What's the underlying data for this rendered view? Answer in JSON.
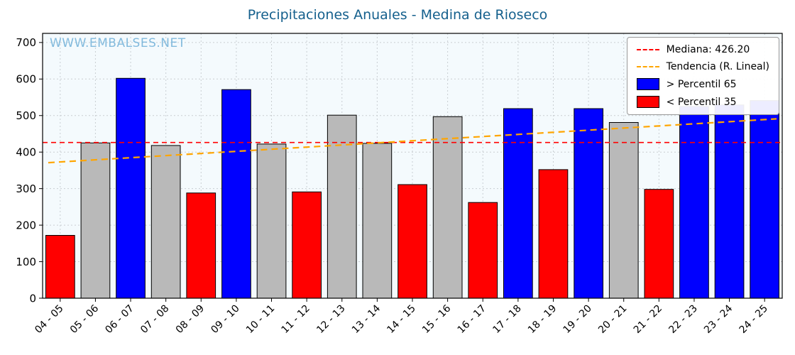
{
  "title": "Precipitaciones Anuales - Medina de Rioseco",
  "watermark": "WWW.EMBALSES.NET",
  "legend": {
    "median_label": "Mediana: 426.20",
    "trend_label": "Tendencia (R. Lineal)",
    "p65_label": "> Percentil 65",
    "p35_label": "< Percentil 35"
  },
  "colors": {
    "blue": "#0000ff",
    "red": "#ff0000",
    "gray": "#b9b9b9",
    "median_line": "#ff0000",
    "trend_line": "#ffa500",
    "title": "#15608d",
    "watermark": "#6fb0d8",
    "plot_bg": "#f4fafd"
  },
  "chart_data": {
    "type": "bar",
    "title": "Precipitaciones Anuales - Medina de Rioseco",
    "xlabel": "",
    "ylabel": "",
    "categories": [
      "04 - 05",
      "05 - 06",
      "06 - 07",
      "07 - 08",
      "08 - 09",
      "09 - 10",
      "10 - 11",
      "11 - 12",
      "12 - 13",
      "13 - 14",
      "14 - 15",
      "15 - 16",
      "16 - 17",
      "17 - 18",
      "18 - 19",
      "19 - 20",
      "20 - 21",
      "21 - 22",
      "22 - 23",
      "23 - 24",
      "24 - 25"
    ],
    "values": [
      172,
      425,
      602,
      418,
      288,
      571,
      422,
      291,
      501,
      424,
      311,
      497,
      262,
      519,
      352,
      519,
      481,
      298,
      525,
      529,
      541
    ],
    "bar_colors": [
      "red",
      "gray",
      "blue",
      "gray",
      "red",
      "blue",
      "gray",
      "red",
      "gray",
      "gray",
      "red",
      "gray",
      "red",
      "blue",
      "red",
      "blue",
      "gray",
      "red",
      "blue",
      "blue",
      "blue"
    ],
    "median": 426.2,
    "trend": {
      "start_value": 373,
      "end_value": 489
    },
    "ylim": [
      0,
      700
    ],
    "yticks": [
      0,
      100,
      200,
      300,
      400,
      500,
      600,
      700
    ],
    "grid": true,
    "legend_position": "upper right"
  }
}
